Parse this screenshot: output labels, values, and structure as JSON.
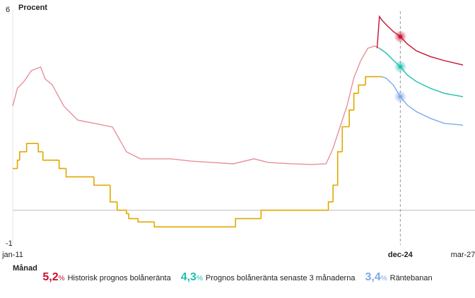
{
  "chart_data": {
    "type": "line",
    "ylabel": "Procent",
    "xlabel": "Månad",
    "ylim": [
      -1,
      6
    ],
    "yticks": [
      -1,
      6
    ],
    "xlim": [
      "2011-01",
      "2027-03"
    ],
    "xticks": [
      {
        "value": "2011-01",
        "label": "jan-11"
      },
      {
        "value": "2024-12",
        "label": "dec-24"
      },
      {
        "value": "2027-03",
        "label": "mar-27"
      }
    ],
    "hline": 0,
    "markers_at": "2024-12",
    "series": [
      {
        "color": "#e8909a",
        "line_shape": "linear",
        "x": [
          "2011-01",
          "2011-03",
          "2011-06",
          "2011-09",
          "2012-01",
          "2012-03",
          "2012-06",
          "2012-11",
          "2013-05",
          "2014-01",
          "2014-08",
          "2015-02",
          "2015-08",
          "2016-09",
          "2017-06",
          "2018-03",
          "2018-12",
          "2019-09",
          "2020-03",
          "2021-01",
          "2021-10",
          "2022-04",
          "2022-07",
          "2022-10",
          "2023-01",
          "2023-04",
          "2023-07",
          "2023-10",
          "2024-01",
          "2024-03"
        ],
        "values": [
          3.12,
          3.65,
          3.87,
          4.18,
          4.29,
          3.93,
          3.76,
          3.12,
          2.7,
          2.59,
          2.49,
          1.75,
          1.54,
          1.54,
          1.47,
          1.43,
          1.39,
          1.54,
          1.43,
          1.39,
          1.37,
          1.39,
          1.85,
          2.49,
          3.12,
          3.97,
          4.49,
          4.85,
          4.92,
          4.85
        ]
      },
      {
        "color": "#e0a800",
        "line_shape": "step",
        "x": [
          "2011-01",
          "2011-03",
          "2011-04",
          "2011-07",
          "2011-12",
          "2012-02",
          "2012-09",
          "2012-12",
          "2013-12",
          "2014-07",
          "2014-10",
          "2015-02",
          "2015-03",
          "2015-07",
          "2016-02",
          "2019-01",
          "2019-12",
          "2022-05",
          "2022-07",
          "2022-09",
          "2022-11",
          "2023-02",
          "2023-04",
          "2023-06",
          "2023-09",
          "2024-04"
        ],
        "values": [
          1.25,
          1.5,
          1.75,
          2.0,
          1.75,
          1.5,
          1.25,
          1.0,
          0.75,
          0.25,
          0,
          -0.1,
          -0.25,
          -0.35,
          -0.5,
          -0.25,
          0,
          0.25,
          0.75,
          1.75,
          2.5,
          3.0,
          3.5,
          3.75,
          4.0,
          4.0
        ]
      },
      {
        "name": "Historisk prognos bolåneränta",
        "color": "#c8102e",
        "line_shape": "linear",
        "legend_label": "5,2",
        "legend_unit": "%",
        "x": [
          "2024-02",
          "2024-03",
          "2024-04",
          "2024-06",
          "2024-09",
          "2024-12",
          "2025-03",
          "2025-07",
          "2026-01",
          "2026-07",
          "2027-03"
        ],
        "values": [
          4.85,
          5.8,
          5.7,
          5.55,
          5.35,
          5.2,
          4.98,
          4.77,
          4.6,
          4.48,
          4.35
        ]
      },
      {
        "name": "Prognos bolåneränta senaste 3 månaderna",
        "color": "#1fbfb0",
        "line_shape": "linear",
        "legend_label": "4,3",
        "legend_unit": "%",
        "x": [
          "2024-03",
          "2024-06",
          "2024-09",
          "2024-12",
          "2025-03",
          "2025-07",
          "2026-01",
          "2026-07",
          "2027-03"
        ],
        "values": [
          4.85,
          4.7,
          4.49,
          4.3,
          4.05,
          3.85,
          3.65,
          3.5,
          3.4
        ]
      },
      {
        "name": "Räntebanan",
        "color": "#7fa8e8",
        "line_shape": "linear",
        "legend_label": "3,4",
        "legend_unit": "%",
        "x": [
          "2024-04",
          "2024-06",
          "2024-09",
          "2024-12",
          "2025-03",
          "2025-07",
          "2026-01",
          "2026-07",
          "2027-03"
        ],
        "values": [
          4.0,
          3.95,
          3.75,
          3.4,
          3.15,
          2.95,
          2.75,
          2.6,
          2.55
        ]
      }
    ]
  }
}
